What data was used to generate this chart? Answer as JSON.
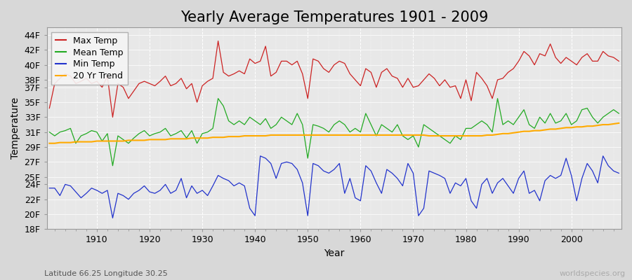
{
  "title": "Yearly Average Temperatures 1901 - 2009",
  "xlabel": "Year",
  "ylabel": "Temperature",
  "start_year": 1901,
  "end_year": 2009,
  "background_color": "#d8d8d8",
  "plot_bg_color": "#e8e8e8",
  "grid_color": "#ffffff",
  "colors": {
    "max": "#cc2222",
    "mean": "#22aa22",
    "min": "#2233cc",
    "trend": "#ffaa00"
  },
  "legend_labels": [
    "Max Temp",
    "Mean Temp",
    "Min Temp",
    "20 Yr Trend"
  ],
  "ylim": [
    18,
    45
  ],
  "yticks": [
    18,
    20,
    22,
    24,
    25,
    27,
    29,
    31,
    33,
    35,
    37,
    38,
    40,
    42,
    44
  ],
  "ytick_labels": [
    "18F",
    "20F",
    "22F",
    "24F",
    "25F",
    "27F",
    "29F",
    "31F",
    "33F",
    "35F",
    "37F",
    "38F",
    "40F",
    "42F",
    "44F"
  ],
  "footnote_left": "Latitude 66.25 Longitude 30.25",
  "footnote_right": "worldspecies.org",
  "title_fontsize": 15,
  "axis_fontsize": 9,
  "legend_fontsize": 9,
  "footnote_fontsize": 8,
  "max_temps": [
    34.2,
    37.5,
    38.2,
    38.8,
    38.5,
    37.5,
    37.8,
    38.2,
    37.5,
    37.8,
    37.0,
    38.5,
    33.0,
    37.5,
    37.0,
    35.5,
    36.5,
    37.5,
    37.8,
    37.5,
    37.2,
    37.8,
    38.5,
    37.2,
    37.5,
    38.2,
    36.8,
    37.5,
    35.0,
    37.2,
    37.8,
    38.2,
    43.2,
    39.0,
    38.5,
    38.8,
    39.2,
    38.8,
    40.8,
    40.2,
    40.5,
    42.5,
    38.5,
    39.0,
    40.5,
    40.5,
    40.0,
    40.5,
    38.8,
    35.5,
    40.8,
    40.5,
    39.5,
    39.0,
    40.0,
    40.5,
    40.2,
    38.8,
    38.0,
    37.2,
    39.5,
    39.0,
    37.0,
    39.0,
    39.5,
    38.5,
    38.2,
    37.0,
    38.2,
    37.0,
    37.2,
    38.0,
    38.8,
    38.2,
    37.2,
    38.0,
    37.0,
    37.2,
    35.5,
    38.0,
    35.2,
    39.0,
    38.2,
    37.2,
    35.5,
    38.0,
    38.2,
    39.0,
    39.5,
    40.5,
    41.8,
    41.2,
    40.0,
    41.5,
    41.2,
    42.8,
    41.0,
    40.2,
    41.0,
    40.5,
    40.0,
    41.0,
    41.5,
    40.5,
    40.5,
    41.8,
    41.2,
    41.0,
    40.5
  ],
  "mean_temps": [
    31.0,
    30.5,
    31.0,
    31.2,
    31.5,
    29.5,
    30.5,
    30.8,
    31.2,
    31.0,
    29.8,
    30.8,
    26.5,
    30.5,
    30.0,
    29.5,
    30.2,
    30.8,
    31.2,
    30.5,
    30.8,
    31.0,
    31.5,
    30.5,
    30.8,
    31.2,
    30.2,
    31.2,
    29.5,
    30.8,
    31.0,
    31.5,
    35.5,
    34.5,
    32.5,
    32.0,
    32.5,
    32.0,
    33.0,
    32.5,
    32.0,
    32.8,
    31.5,
    32.0,
    33.0,
    32.5,
    32.0,
    33.5,
    32.0,
    27.5,
    32.0,
    31.8,
    31.5,
    31.0,
    32.0,
    32.5,
    32.0,
    31.0,
    31.5,
    31.0,
    33.5,
    32.0,
    30.5,
    32.0,
    31.5,
    31.0,
    32.0,
    30.5,
    30.0,
    30.5,
    29.0,
    32.0,
    31.5,
    31.0,
    30.5,
    30.0,
    29.5,
    30.5,
    30.0,
    31.5,
    31.5,
    32.0,
    32.5,
    32.0,
    31.0,
    35.5,
    32.0,
    32.5,
    32.0,
    33.0,
    34.0,
    32.0,
    31.5,
    33.0,
    32.2,
    33.5,
    32.2,
    32.5,
    33.5,
    32.0,
    32.5,
    34.0,
    34.2,
    33.0,
    32.2,
    33.0,
    33.5,
    34.0,
    33.5
  ],
  "min_temps": [
    23.5,
    23.5,
    22.5,
    24.0,
    23.8,
    23.0,
    22.2,
    22.8,
    23.5,
    23.2,
    22.8,
    23.2,
    19.5,
    22.8,
    22.5,
    22.0,
    22.8,
    23.2,
    23.8,
    23.0,
    22.8,
    23.2,
    24.0,
    22.8,
    23.2,
    24.8,
    22.2,
    23.8,
    22.8,
    23.2,
    22.5,
    23.8,
    25.2,
    24.8,
    24.5,
    23.8,
    24.2,
    23.8,
    20.8,
    19.8,
    27.8,
    27.5,
    26.8,
    24.8,
    26.8,
    27.0,
    26.8,
    26.0,
    24.2,
    19.8,
    26.8,
    26.5,
    25.8,
    25.5,
    26.0,
    26.8,
    22.8,
    24.8,
    22.2,
    21.8,
    26.5,
    25.8,
    24.2,
    22.8,
    26.0,
    25.5,
    24.8,
    23.8,
    26.8,
    25.5,
    19.8,
    20.8,
    25.8,
    25.5,
    25.2,
    24.8,
    22.8,
    24.2,
    23.8,
    24.8,
    21.8,
    20.8,
    24.0,
    24.8,
    22.8,
    24.2,
    24.8,
    23.8,
    22.8,
    24.8,
    25.8,
    22.8,
    23.2,
    21.8,
    24.5,
    25.2,
    24.8,
    25.2,
    27.5,
    25.2,
    21.8,
    24.8,
    26.8,
    25.8,
    24.2,
    27.8,
    26.5,
    25.8,
    25.5
  ],
  "trend_temps": [
    29.5,
    29.5,
    29.6,
    29.6,
    29.6,
    29.7,
    29.7,
    29.7,
    29.7,
    29.8,
    29.8,
    29.8,
    29.8,
    29.8,
    29.8,
    29.9,
    29.9,
    29.9,
    29.9,
    30.0,
    30.0,
    30.0,
    30.0,
    30.1,
    30.1,
    30.1,
    30.1,
    30.2,
    30.2,
    30.2,
    30.2,
    30.3,
    30.3,
    30.3,
    30.4,
    30.4,
    30.4,
    30.5,
    30.5,
    30.5,
    30.5,
    30.5,
    30.6,
    30.6,
    30.6,
    30.6,
    30.6,
    30.6,
    30.6,
    30.6,
    30.6,
    30.6,
    30.6,
    30.6,
    30.6,
    30.6,
    30.6,
    30.6,
    30.6,
    30.6,
    30.6,
    30.6,
    30.6,
    30.6,
    30.6,
    30.6,
    30.6,
    30.6,
    30.6,
    30.6,
    30.6,
    30.6,
    30.5,
    30.5,
    30.5,
    30.5,
    30.5,
    30.5,
    30.5,
    30.5,
    30.5,
    30.5,
    30.5,
    30.6,
    30.6,
    30.7,
    30.8,
    30.8,
    30.9,
    31.0,
    31.1,
    31.1,
    31.2,
    31.2,
    31.3,
    31.4,
    31.4,
    31.5,
    31.6,
    31.6,
    31.7,
    31.7,
    31.8,
    31.8,
    31.9,
    32.0,
    32.0,
    32.1,
    32.2
  ]
}
